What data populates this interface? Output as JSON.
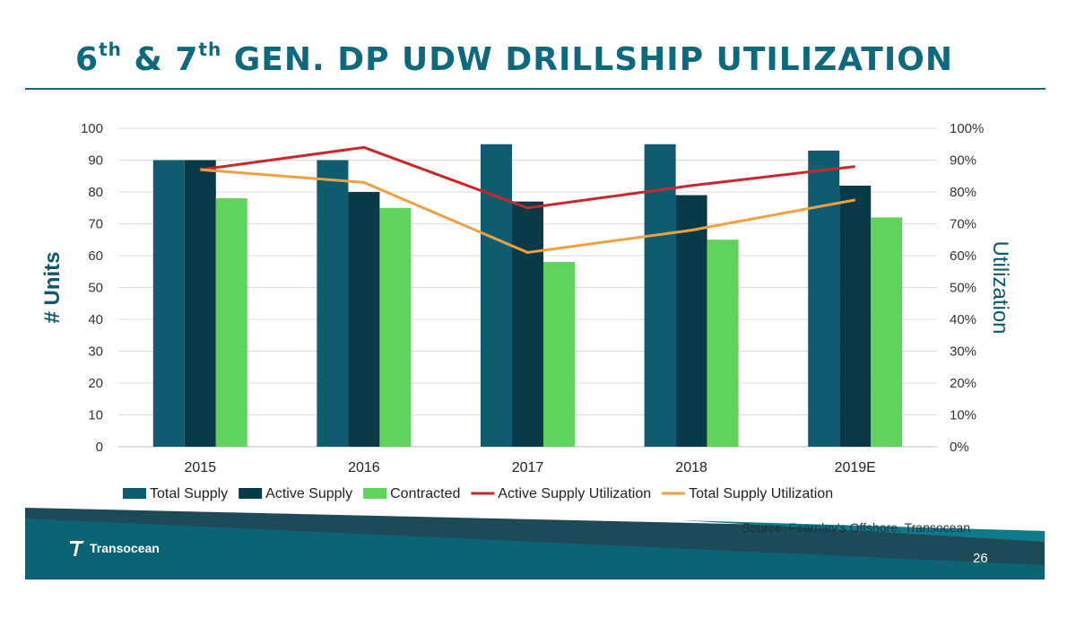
{
  "slide": {
    "title_pre": "6",
    "title_sup1": "th",
    "title_mid": " & 7",
    "title_sup2": "th",
    "title_post": " GEN. DP UDW DRILLSHIP UTILIZATION",
    "source": "Source: Fearnley's Offshore, Transocean",
    "logo_text": "Transocean",
    "page_number": "26",
    "colors": {
      "brand": "#0d6a7e",
      "footer": "#0c5a6a"
    }
  },
  "chart_data": {
    "type": "bar",
    "categories": [
      "2015",
      "2016",
      "2017",
      "2018",
      "2019E"
    ],
    "series": [
      {
        "name": "Total Supply",
        "kind": "bar",
        "axis": "left",
        "color": "#0e5c70",
        "values": [
          90,
          90,
          95,
          95,
          93
        ]
      },
      {
        "name": "Active Supply",
        "kind": "bar",
        "axis": "left",
        "color": "#0a3a47",
        "values": [
          90,
          80,
          77,
          79,
          82
        ]
      },
      {
        "name": "Contracted",
        "kind": "bar",
        "axis": "left",
        "color": "#5fd35a",
        "values": [
          78,
          75,
          58,
          65,
          72
        ]
      },
      {
        "name": "Active Supply Utilization",
        "kind": "line",
        "axis": "right",
        "color": "#c8282c",
        "values": [
          87,
          94,
          75,
          82,
          88
        ]
      },
      {
        "name": "Total Supply Utilization",
        "kind": "line",
        "axis": "right",
        "color": "#f0a040",
        "values": [
          87,
          83,
          61,
          68,
          77.5
        ]
      }
    ],
    "ylabel": "# Units",
    "y2label": "Utilization",
    "ylim": [
      0,
      100
    ],
    "y2lim": [
      0,
      100
    ],
    "yticks": [
      "0",
      "10",
      "20",
      "30",
      "40",
      "50",
      "60",
      "70",
      "80",
      "90",
      "100"
    ],
    "y2ticks": [
      "0%",
      "10%",
      "20%",
      "30%",
      "40%",
      "50%",
      "60%",
      "70%",
      "80%",
      "90%",
      "100%"
    ],
    "grid": true,
    "legend_position": "bottom"
  }
}
